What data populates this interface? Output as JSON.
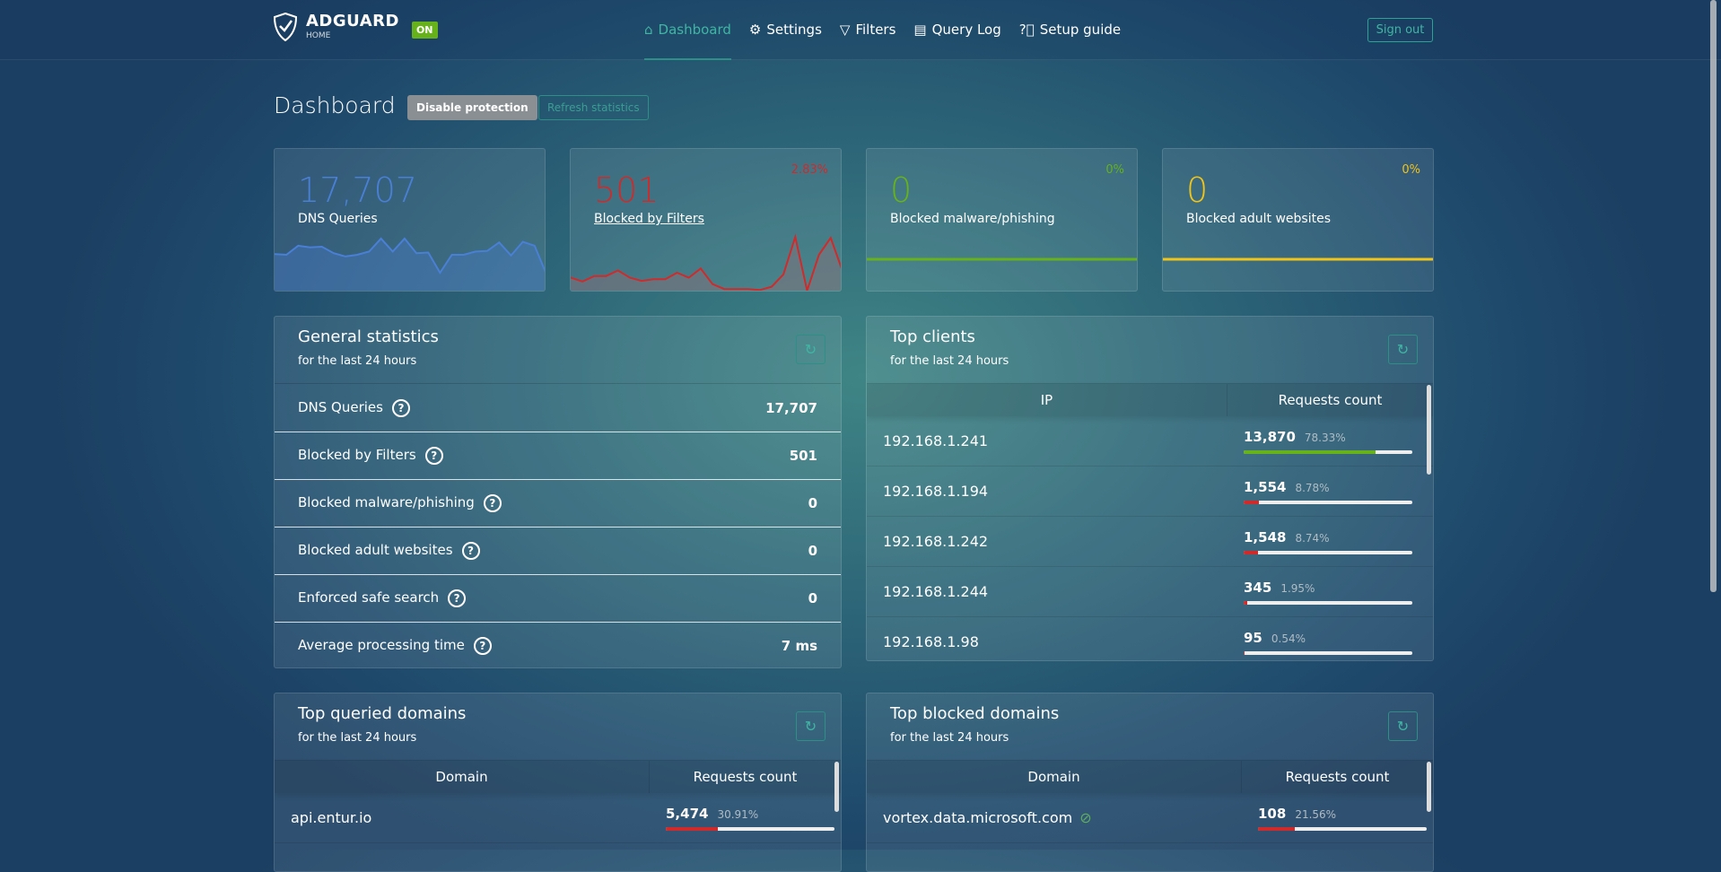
{
  "header": {
    "brand": "ADGUARD",
    "sub": "HOME",
    "status": "ON",
    "nav": [
      {
        "label": "Dashboard",
        "icon": "home-icon",
        "active": true
      },
      {
        "label": "Settings",
        "icon": "gear-icon"
      },
      {
        "label": "Filters",
        "icon": "filter-icon"
      },
      {
        "label": "Query Log",
        "icon": "document-icon"
      },
      {
        "label": "Setup guide",
        "icon": "question-icon"
      }
    ],
    "sign_out": "Sign out"
  },
  "page": {
    "title": "Dashboard",
    "disable": "Disable protection",
    "refresh": "Refresh statistics"
  },
  "cards": [
    {
      "value": "17,707",
      "label": "DNS Queries",
      "percent": "",
      "color": "#4a7fd6",
      "spark": [
        112,
        110,
        138,
        133,
        135,
        115,
        105,
        110,
        120,
        160,
        120,
        160,
        115,
        117,
        55,
        110,
        110,
        120,
        122,
        148,
        108,
        150,
        138,
        50
      ]
    },
    {
      "value": "501",
      "label": "Blocked by Filters",
      "percent": "2.83%",
      "color": "#d02a2a",
      "spark": [
        40,
        28,
        45,
        45,
        62,
        40,
        30,
        35,
        35,
        55,
        40,
        68,
        20,
        5,
        5,
        5,
        2,
        12,
        50,
        165,
        0,
        110,
        162,
        60
      ]
    },
    {
      "value": "0",
      "label": "Blocked malware/phishing",
      "percent": "0%",
      "color": "#67b21a",
      "spark": [
        0,
        0
      ]
    },
    {
      "value": "0",
      "label": "Blocked adult websites",
      "percent": "0%",
      "color": "#f0c419",
      "spark": [
        0,
        0
      ]
    }
  ],
  "general": {
    "title": "General statistics",
    "subtitle": "for the last 24 hours",
    "rows": [
      {
        "label": "DNS Queries",
        "value": "17,707"
      },
      {
        "label": "Blocked by Filters",
        "value": "501"
      },
      {
        "label": "Blocked malware/phishing",
        "value": "0"
      },
      {
        "label": "Blocked adult websites",
        "value": "0"
      },
      {
        "label": "Enforced safe search",
        "value": "0"
      },
      {
        "label": "Average processing time",
        "value": "7 ms"
      }
    ]
  },
  "clients": {
    "title": "Top clients",
    "subtitle": "for the last 24 hours",
    "col1": "IP",
    "col2": "Requests count",
    "rows": [
      {
        "ip": "192.168.1.241",
        "count": "13,870",
        "pct": "78.33%",
        "fill": 78.33,
        "color": "#67b21a"
      },
      {
        "ip": "192.168.1.194",
        "count": "1,554",
        "pct": "8.78%",
        "fill": 8.78,
        "color": "#d02a2a"
      },
      {
        "ip": "192.168.1.242",
        "count": "1,548",
        "pct": "8.74%",
        "fill": 8.74,
        "color": "#d02a2a"
      },
      {
        "ip": "192.168.1.244",
        "count": "345",
        "pct": "1.95%",
        "fill": 1.95,
        "color": "#d02a2a"
      },
      {
        "ip": "192.168.1.98",
        "count": "95",
        "pct": "0.54%",
        "fill": 0.54,
        "color": "#d02a2a"
      }
    ]
  },
  "queried": {
    "title": "Top queried domains",
    "subtitle": "for the last 24 hours",
    "col1": "Domain",
    "col2": "Requests count",
    "rows": [
      {
        "domain": "api.entur.io",
        "count": "5,474",
        "pct": "30.91%",
        "fill": 30.91,
        "color": "#d02a2a"
      }
    ]
  },
  "blocked": {
    "title": "Top blocked domains",
    "subtitle": "for the last 24 hours",
    "col1": "Domain",
    "col2": "Requests count",
    "rows": [
      {
        "domain": "vortex.data.microsoft.com",
        "count": "108",
        "pct": "21.56%",
        "fill": 21.56,
        "color": "#d02a2a"
      }
    ]
  }
}
